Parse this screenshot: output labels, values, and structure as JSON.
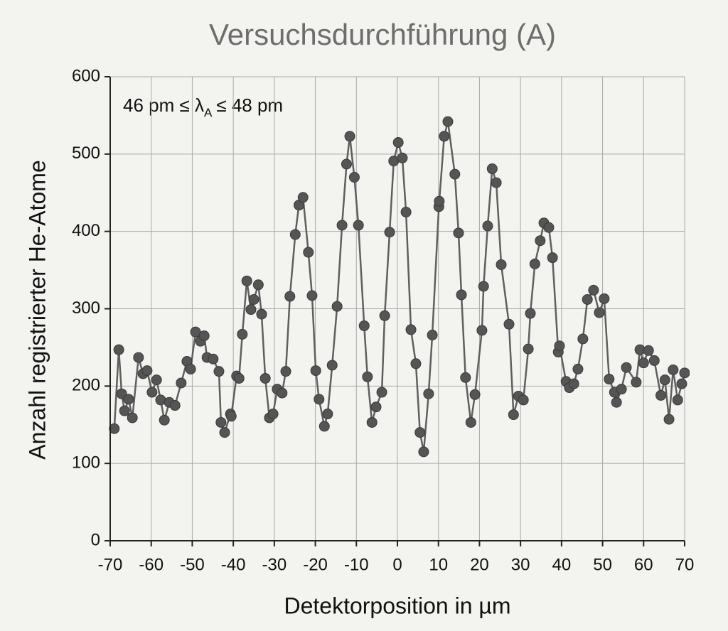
{
  "chart_data": {
    "type": "line",
    "title": "Versuchsdurchführung (A)",
    "xlabel": "Detektorposition in µm",
    "ylabel": "Anzahl registrierter He-Atome",
    "annotation": [
      "46 pm ≤ λ",
      "A",
      "≤ 48 pm"
    ],
    "x": [
      -69.0,
      -67.9,
      -67.2,
      -66.5,
      -65.5,
      -64.6,
      -63.1,
      -62.0,
      -61.0,
      -59.8,
      -58.7,
      -57.7,
      -56.8,
      -55.6,
      -54.2,
      -52.7,
      -51.3,
      -50.4,
      -49.2,
      -48.0,
      -47.1,
      -46.4,
      -44.9,
      -43.5,
      -43.0,
      -42.1,
      -40.7,
      -40.5,
      -39.2,
      -38.6,
      -37.8,
      -36.7,
      -35.7,
      -35.0,
      -33.9,
      -33.1,
      -32.2,
      -31.2,
      -30.3,
      -29.3,
      -28.1,
      -27.2,
      -26.2,
      -24.9,
      -24.0,
      -23.0,
      -21.7,
      -20.8,
      -19.9,
      -19.1,
      -17.8,
      -17.0,
      -15.9,
      -14.7,
      -13.5,
      -12.4,
      -11.6,
      -10.5,
      -9.5,
      -8.1,
      -7.3,
      -6.2,
      -5.2,
      -3.8,
      -3.1,
      -1.9,
      -0.9,
      0.2,
      1.2,
      2.1,
      3.3,
      4.5,
      5.5,
      6.4,
      7.6,
      8.5,
      10.1,
      10.2,
      11.4,
      12.3,
      14.0,
      14.9,
      15.6,
      16.6,
      17.9,
      18.9,
      20.6,
      21.0,
      22.0,
      23.1,
      24.1,
      25.3,
      27.2,
      28.3,
      29.5,
      30.7,
      31.9,
      32.4,
      33.5,
      34.8,
      35.7,
      36.9,
      37.8,
      39.2,
      39.5,
      41.1,
      41.9,
      43.0,
      44.0,
      45.2,
      46.3,
      47.8,
      49.2,
      50.4,
      51.6,
      52.9,
      53.4,
      54.6,
      55.8,
      58.2,
      59.1,
      60.0,
      61.2,
      62.6,
      64.2,
      65.2,
      66.2,
      67.2,
      68.3,
      69.3,
      70.0
    ],
    "values": [
      145,
      247,
      190,
      168,
      183,
      159,
      237,
      216,
      220,
      192,
      208,
      182,
      156,
      179,
      175,
      204,
      232,
      222,
      270,
      258,
      265,
      237,
      235,
      219,
      153,
      140,
      164,
      161,
      213,
      210,
      267,
      336,
      299,
      312,
      331,
      293,
      210,
      159,
      164,
      196,
      191,
      219,
      316,
      396,
      434,
      444,
      373,
      317,
      220,
      183,
      148,
      164,
      227,
      303,
      408,
      487,
      523,
      470,
      408,
      278,
      212,
      153,
      173,
      192,
      291,
      399,
      491,
      515,
      495,
      425,
      273,
      229,
      140,
      115,
      190,
      266,
      432,
      439,
      523,
      542,
      474,
      398,
      318,
      211,
      153,
      189,
      272,
      329,
      407,
      481,
      463,
      357,
      280,
      163,
      187,
      182,
      248,
      294,
      358,
      388,
      411,
      405,
      366,
      244,
      252,
      206,
      198,
      203,
      222,
      261,
      312,
      324,
      295,
      313,
      209,
      192,
      179,
      196,
      224,
      205,
      247,
      230,
      246,
      233,
      188,
      208,
      157,
      221,
      182,
      203,
      217
    ],
    "line_color": "#5f5f5f",
    "marker_color": "#555555",
    "xlim": [
      -70,
      70
    ],
    "xticks": [
      -70,
      -60,
      -50,
      -40,
      -30,
      -20,
      -10,
      0,
      10,
      20,
      30,
      40,
      50,
      60,
      70
    ],
    "ylim": [
      0,
      600
    ],
    "yticks": [
      0,
      100,
      200,
      300,
      400,
      500,
      600
    ],
    "grid": true
  }
}
